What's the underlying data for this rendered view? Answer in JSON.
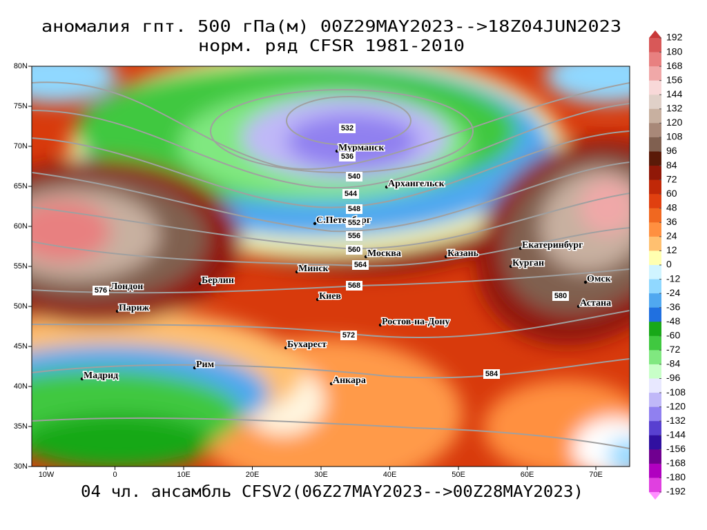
{
  "title": "аномалия гпт. 500 гПа(м) 00Z29MAY2023-->18Z04JUN2023",
  "subtitle": "норм. ряд CFSR 1981-2010",
  "footer": "04 чл. ансамбль CFSV2(06Z27MAY2023-->00Z28MAY2023)",
  "map": {
    "x_labels": [
      "10W",
      "0",
      "10E",
      "20E",
      "30E",
      "40E",
      "50E",
      "60E",
      "70E"
    ],
    "y_labels": [
      "80N",
      "75N",
      "70N",
      "65N",
      "60N",
      "55N",
      "50N",
      "45N",
      "40N",
      "35N",
      "30N"
    ],
    "cities": [
      "Мурманск",
      "Архангельск",
      "С.Петербург",
      "Москва",
      "Казань",
      "Екатеринбург",
      "Курган",
      "Омск",
      "Астана",
      "Минск",
      "Берлин",
      "Лондон",
      "Париж",
      "Киев",
      "Ростов-на-Дону",
      "Бухарест",
      "Рим",
      "Мадрид",
      "Анкара"
    ],
    "contour_labels": [
      532,
      536,
      540,
      544,
      548,
      552,
      556,
      560,
      564,
      568,
      572,
      576,
      580,
      584
    ]
  },
  "colorbar": {
    "levels": [
      192,
      180,
      168,
      156,
      144,
      132,
      120,
      108,
      96,
      84,
      72,
      60,
      48,
      36,
      24,
      12,
      0,
      -12,
      -24,
      -36,
      -48,
      -60,
      -72,
      -84,
      -96,
      -108,
      -120,
      -132,
      -144,
      -156,
      -168,
      -180,
      -192
    ],
    "colors": [
      "#c83838",
      "#d85858",
      "#e88080",
      "#f0a8a8",
      "#f8d8d8",
      "#e0d0c8",
      "#c8b0a0",
      "#a88878",
      "#806050",
      "#5a1a08",
      "#901808",
      "#c02808",
      "#e04010",
      "#f06820",
      "#ff9040",
      "#ffc070",
      "#ffffb0",
      "#d0f4ff",
      "#90d8ff",
      "#50a8f0",
      "#2070e0",
      "#18a818",
      "#40c840",
      "#80e880",
      "#c8ffc8",
      "#e8e8ff",
      "#c0b8f8",
      "#9080f0",
      "#5840d0",
      "#3010a0",
      "#700090",
      "#b000c0",
      "#e040e0",
      "#ff90ff"
    ]
  }
}
